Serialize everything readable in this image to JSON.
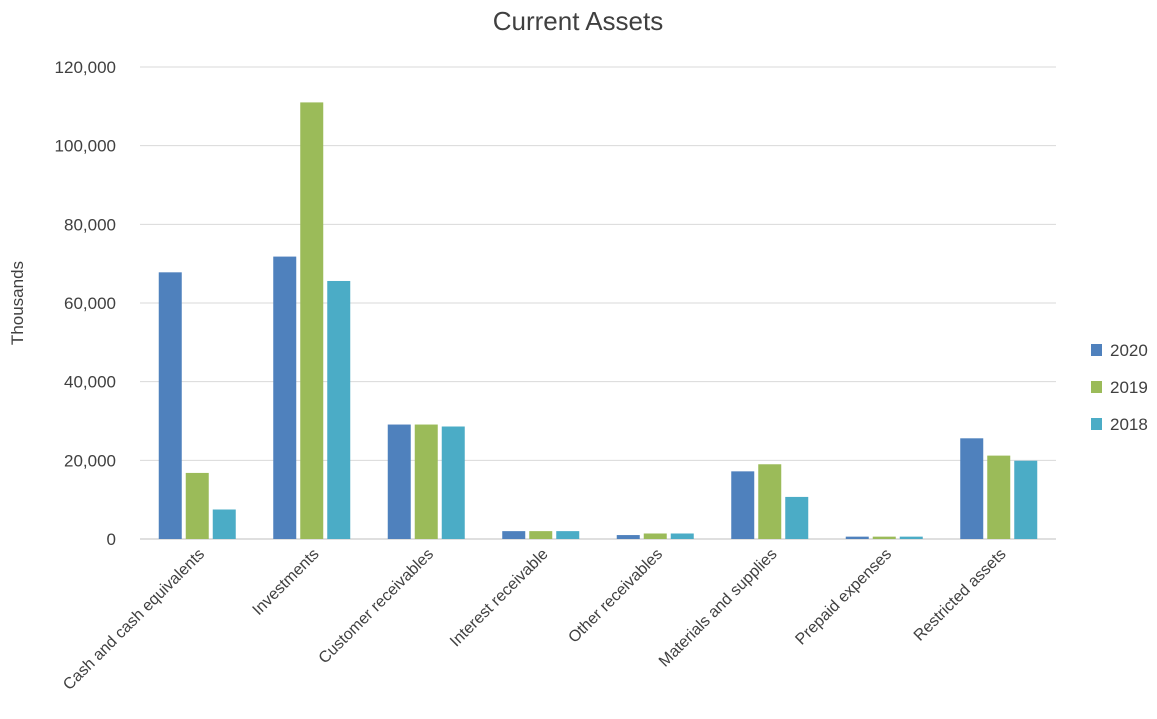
{
  "chart_data": {
    "type": "bar",
    "title": "Current Assets",
    "xlabel": "",
    "ylabel": "Thousands",
    "ylim": [
      0,
      120000
    ],
    "yticks": [
      "0",
      "20,000",
      "40,000",
      "60,000",
      "80,000",
      "100,000",
      "120,000"
    ],
    "ytick_values": [
      0,
      20000,
      40000,
      60000,
      80000,
      100000,
      120000
    ],
    "grid": true,
    "legend_position": "right",
    "categories": [
      "Cash and cash equivalents",
      "Investments",
      "Customer receivables",
      "Interest receivable",
      "Other receivables",
      "Materials and supplies",
      "Prepaid expenses",
      "Restricted assets"
    ],
    "series": [
      {
        "name": "2020",
        "color": "#4f81bd",
        "values": [
          67800,
          71800,
          29100,
          2000,
          1000,
          17200,
          600,
          25600
        ]
      },
      {
        "name": "2019",
        "color": "#9bbb59",
        "values": [
          16800,
          111000,
          29100,
          2000,
          1400,
          19000,
          600,
          21200
        ]
      },
      {
        "name": "2018",
        "color": "#4bacc6",
        "values": [
          7500,
          65600,
          28600,
          2000,
          1400,
          10700,
          600,
          19900
        ]
      }
    ]
  }
}
